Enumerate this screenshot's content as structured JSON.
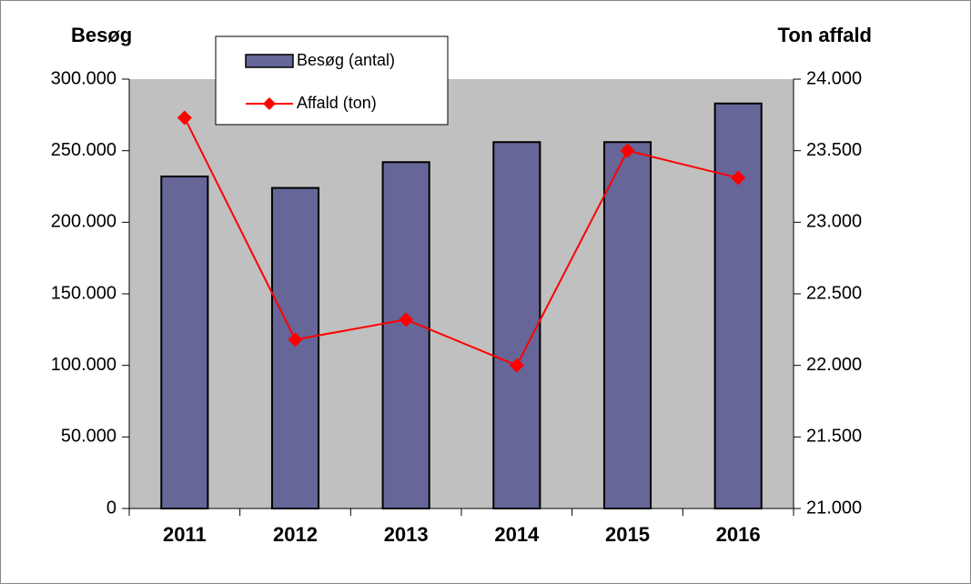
{
  "chart_data": {
    "type": "bar_line",
    "ylabel": "Besøg",
    "y2label": "Ton affald",
    "categories": [
      "2011",
      "2012",
      "2013",
      "2014",
      "2015",
      "2016"
    ],
    "series": [
      {
        "name": "Besøg (antal)",
        "color": "#666699",
        "type": "bar",
        "values": [
          232000,
          224000,
          242000,
          256000,
          256000,
          283000
        ]
      },
      {
        "name": "Affald (ton)",
        "color": "#ff0000",
        "type": "line",
        "axis": "y2",
        "values": [
          23730,
          22180,
          22320,
          22000,
          23500,
          23310
        ]
      }
    ],
    "ylim": [
      0,
      300000
    ],
    "yticks": [
      0,
      {
        "value": 50000,
        "label": "50.000"
      },
      {
        "value": 100000,
        "label": "100.000"
      },
      {
        "value": 150000,
        "label": "150.000"
      },
      {
        "value": 200000,
        "label": "200.000"
      },
      {
        "value": 250000,
        "label": "250.000"
      },
      {
        "value": 300000,
        "label": "300.000"
      }
    ],
    "y2lim": [
      21000,
      24000
    ],
    "y2ticks": [
      {
        "value": 21000,
        "label": "21.000"
      },
      {
        "value": 21500,
        "label": "21.500"
      },
      {
        "value": 22000,
        "label": "22.000"
      },
      {
        "value": 22500,
        "label": "22.500"
      },
      {
        "value": 23000,
        "label": "23.000"
      },
      {
        "value": 23500,
        "label": "23.500"
      },
      {
        "value": 24000,
        "label": "24.000"
      }
    ],
    "plot_background": "#c0c0c0"
  }
}
